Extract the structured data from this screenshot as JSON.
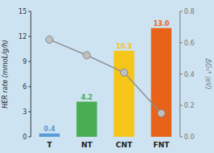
{
  "chart_data": {
    "type": "bar",
    "categories": [
      "T",
      "NT",
      "CNT",
      "FNT"
    ],
    "series": [
      {
        "type": "bar",
        "values": [
          0.4,
          4.2,
          10.3,
          13.0
        ],
        "value_labels": [
          "0.4",
          "4.2",
          "10.3",
          "13.0"
        ],
        "colors": [
          "#5b9bd5",
          "#4aad52",
          "#f5c518",
          "#e8621a"
        ],
        "data_labels": true
      },
      {
        "type": "line",
        "axis": "y2",
        "values": [
          0.62,
          0.52,
          0.41,
          0.15
        ],
        "color": "#909090",
        "marker": "circle"
      }
    ],
    "ylabel": "HER rate (mmoL/g/h)",
    "y2label": "ΔGₕ* (eV)",
    "ylim": [
      0,
      15
    ],
    "yticks": [
      0,
      3,
      6,
      9,
      12,
      15
    ],
    "y2lim": [
      0,
      0.8
    ],
    "y2ticks": [
      {
        "value": 0,
        "label": "0.0"
      },
      0.2,
      0.4,
      0.6,
      0.8
    ],
    "grid": false
  }
}
